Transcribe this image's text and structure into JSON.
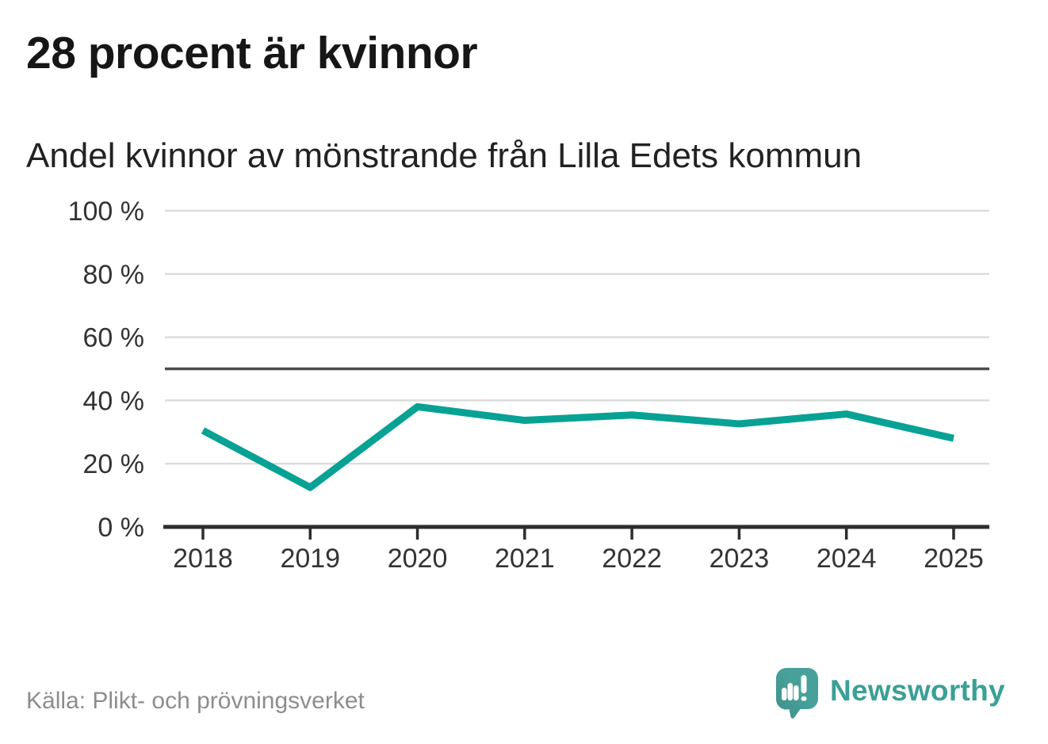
{
  "header": {
    "title": "28 procent är kvinnor",
    "subtitle": "Andel kvinnor av mönstrande från Lilla Edets kommun"
  },
  "chart_data": {
    "type": "line",
    "title": "28 procent är kvinnor",
    "subtitle": "Andel kvinnor av mönstrande från Lilla Edets kommun",
    "x_labels": [
      "2018",
      "2019",
      "2020",
      "2021",
      "2022",
      "2023",
      "2024",
      "2025"
    ],
    "series": [
      {
        "name": "Andel kvinnor av mönstrande",
        "color": "#07a294",
        "values": [
          30.5,
          12.5,
          38,
          33.7,
          35.4,
          32.6,
          35.7,
          28
        ]
      }
    ],
    "ylim": [
      0,
      100
    ],
    "yticks": [
      0,
      20,
      40,
      60,
      80,
      100
    ],
    "ytick_labels": [
      "0 %",
      "20 %",
      "40 %",
      "60 %",
      "80 %",
      "100 %"
    ],
    "reference_line_y": 50,
    "grid": "horizontal",
    "legend": false,
    "xlabel": "",
    "ylabel": ""
  },
  "footer": {
    "source": "Källa: Plikt- och prövningsverket",
    "brand": "Newsworthy"
  },
  "colors": {
    "accent_teal": "#07a294",
    "logo_teal": "#48a09a",
    "logo_teal_dark": "#3c8f8a",
    "brand_text_teal": "#3ba096",
    "grid_line": "#dcdcdc",
    "reference_line": "#4d4d4d",
    "axis_line": "#2d2d2d",
    "tick_text": "#333333",
    "title_text": "#161616",
    "subtitle_text": "#222222",
    "source_text": "#8d8d8d",
    "background": "#ffffff"
  }
}
